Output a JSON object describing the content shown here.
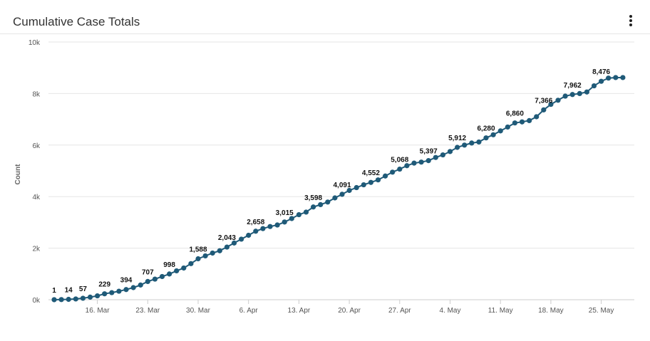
{
  "header": {
    "title": "Cumulative Case Totals",
    "menu_icon": "vertical-ellipsis-icon"
  },
  "chart_data": {
    "type": "line",
    "title": "Cumulative Case Totals",
    "xlabel": "",
    "ylabel": "Count",
    "ylim": [
      0,
      10000
    ],
    "y_ticks": [
      0,
      2000,
      4000,
      6000,
      8000,
      10000
    ],
    "y_tick_labels": [
      "0k",
      "2k",
      "4k",
      "6k",
      "8k",
      "10k"
    ],
    "x_start_date": "2020-03-10",
    "x_tick_labels": [
      "16. Mar",
      "23. Mar",
      "30. Mar",
      "6. Apr",
      "13. Apr",
      "20. Apr",
      "27. Apr",
      "4. May",
      "11. May",
      "18. May",
      "25. May"
    ],
    "x_tick_days": [
      6,
      13,
      20,
      27,
      34,
      41,
      48,
      55,
      62,
      69,
      76
    ],
    "grid": true,
    "color": "#1f5a78",
    "series": [
      {
        "name": "",
        "values": [
          1,
          5,
          14,
          30,
          57,
          100,
          150,
          229,
          275,
          330,
          394,
          470,
          570,
          707,
          800,
          900,
          998,
          1120,
          1230,
          1400,
          1588,
          1700,
          1810,
          1900,
          2043,
          2200,
          2350,
          2500,
          2658,
          2760,
          2840,
          2900,
          3015,
          3150,
          3300,
          3400,
          3598,
          3690,
          3790,
          3950,
          4091,
          4240,
          4350,
          4460,
          4552,
          4650,
          4800,
          4950,
          5068,
          5200,
          5300,
          5340,
          5397,
          5520,
          5620,
          5750,
          5912,
          6000,
          6080,
          6120,
          6280,
          6400,
          6550,
          6700,
          6860,
          6900,
          6950,
          7100,
          7366,
          7580,
          7740,
          7900,
          7962,
          8000,
          8060,
          8300,
          8476,
          8600,
          8620,
          8620
        ]
      }
    ],
    "data_labels": [
      {
        "index": 0,
        "text": "1"
      },
      {
        "index": 2,
        "text": "14"
      },
      {
        "index": 4,
        "text": "57"
      },
      {
        "index": 7,
        "text": "229"
      },
      {
        "index": 10,
        "text": "394"
      },
      {
        "index": 13,
        "text": "707"
      },
      {
        "index": 16,
        "text": "998"
      },
      {
        "index": 20,
        "text": "1,588"
      },
      {
        "index": 24,
        "text": "2,043"
      },
      {
        "index": 28,
        "text": "2,658"
      },
      {
        "index": 32,
        "text": "3,015"
      },
      {
        "index": 36,
        "text": "3,598"
      },
      {
        "index": 40,
        "text": "4,091"
      },
      {
        "index": 44,
        "text": "4,552"
      },
      {
        "index": 48,
        "text": "5,068"
      },
      {
        "index": 52,
        "text": "5,397"
      },
      {
        "index": 56,
        "text": "5,912"
      },
      {
        "index": 60,
        "text": "6,280"
      },
      {
        "index": 64,
        "text": "6,860"
      },
      {
        "index": 68,
        "text": "7,366"
      },
      {
        "index": 72,
        "text": "7,962"
      },
      {
        "index": 76,
        "text": "8,476"
      }
    ]
  }
}
